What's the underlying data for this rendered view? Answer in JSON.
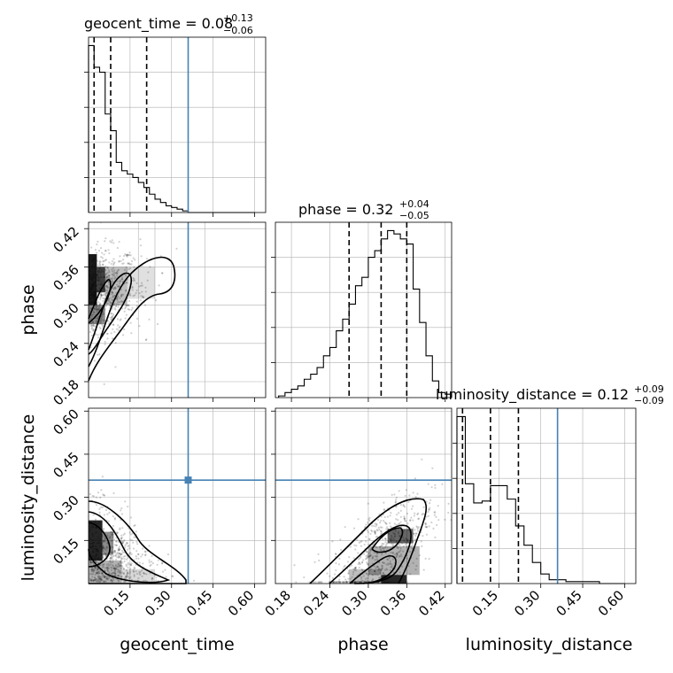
{
  "figure": {
    "type": "corner_plot",
    "truth_color": "#4682b4",
    "hist_color": "#000000",
    "params": [
      "geocent_time",
      "phase",
      "luminosity_distance"
    ]
  },
  "chart_data": [
    {
      "type": "histogram",
      "param": "geocent_time",
      "title_main": "geocent_time = 0.08",
      "title_plus": "+0.13",
      "title_minus": "−0.06",
      "xlim": [
        0.0,
        0.64
      ],
      "bin_edges": [
        0.0,
        0.02,
        0.04,
        0.06,
        0.08,
        0.1,
        0.12,
        0.14,
        0.16,
        0.18,
        0.2,
        0.22,
        0.24,
        0.26,
        0.28,
        0.3,
        0.32,
        0.34,
        0.36,
        0.38,
        0.4,
        0.42,
        0.44,
        0.46,
        0.48,
        0.5,
        0.52,
        0.54,
        0.56,
        0.58,
        0.6
      ],
      "counts": [
        1.0,
        0.87,
        0.84,
        0.59,
        0.49,
        0.3,
        0.25,
        0.23,
        0.21,
        0.18,
        0.15,
        0.11,
        0.08,
        0.06,
        0.04,
        0.03,
        0.02,
        0.01,
        0.0,
        0.0,
        0.0,
        0.0,
        0.0,
        0.0,
        0.0,
        0.0,
        0.0,
        0.0,
        0.0,
        0.0
      ],
      "quantiles": [
        0.02,
        0.08,
        0.21
      ],
      "truth": 0.36,
      "xticks": []
    },
    {
      "type": "histogram",
      "param": "phase",
      "title_main": "phase = 0.32",
      "title_plus": "+0.04",
      "title_minus": "−0.05",
      "xlim": [
        0.155,
        0.43
      ],
      "bin_edges": [
        0.16,
        0.17,
        0.18,
        0.19,
        0.2,
        0.21,
        0.22,
        0.23,
        0.24,
        0.25,
        0.26,
        0.27,
        0.28,
        0.29,
        0.3,
        0.31,
        0.32,
        0.33,
        0.34,
        0.35,
        0.36,
        0.37,
        0.38,
        0.39,
        0.4,
        0.41,
        0.42,
        0.43
      ],
      "counts": [
        0.01,
        0.03,
        0.05,
        0.07,
        0.11,
        0.14,
        0.18,
        0.25,
        0.3,
        0.4,
        0.47,
        0.56,
        0.67,
        0.72,
        0.84,
        0.88,
        0.95,
        1.0,
        0.98,
        0.95,
        0.92,
        0.65,
        0.45,
        0.25,
        0.1,
        0.03,
        0.02
      ],
      "quantiles": [
        0.27,
        0.32,
        0.36
      ],
      "truth": null,
      "xticks": []
    },
    {
      "type": "histogram",
      "param": "luminosity_distance",
      "title_main": "luminosity_distance = 0.12",
      "title_plus": "+0.09",
      "title_minus": "−0.09",
      "xlim": [
        0.0,
        0.64
      ],
      "bin_edges": [
        0.0,
        0.03,
        0.06,
        0.09,
        0.12,
        0.15,
        0.18,
        0.21,
        0.24,
        0.27,
        0.3,
        0.33,
        0.36,
        0.39,
        0.42,
        0.45,
        0.48,
        0.51,
        0.54,
        0.57,
        0.6
      ],
      "counts": [
        0.87,
        0.52,
        0.42,
        0.43,
        0.51,
        0.51,
        0.44,
        0.3,
        0.2,
        0.11,
        0.05,
        0.02,
        0.02,
        0.01,
        0.01,
        0.01,
        0.01,
        0.0,
        0.0,
        0.0
      ],
      "quantiles": [
        0.02,
        0.12,
        0.22
      ],
      "truth": 0.36,
      "xticks": [
        "0.15",
        "0.30",
        "0.45",
        "0.60"
      ],
      "xtick_values": [
        0.15,
        0.3,
        0.45,
        0.6
      ]
    },
    {
      "type": "scatter_density",
      "xparam": "geocent_time",
      "yparam": "phase",
      "xlim": [
        0.0,
        0.64
      ],
      "ylim": [
        0.155,
        0.43
      ],
      "truth_x": 0.36,
      "truth_y": null,
      "yticks": [
        "0.18",
        "0.24",
        "0.30",
        "0.36",
        "0.42"
      ],
      "ytick_values": [
        0.18,
        0.24,
        0.3,
        0.36,
        0.42
      ],
      "xticks": []
    },
    {
      "type": "scatter_density",
      "xparam": "geocent_time",
      "yparam": "luminosity_distance",
      "xlim": [
        0.0,
        0.64
      ],
      "ylim": [
        0.0,
        0.61
      ],
      "truth_x": 0.36,
      "truth_y": 0.36,
      "xticks": [
        "0.15",
        "0.30",
        "0.45",
        "0.60"
      ],
      "xtick_values": [
        0.15,
        0.3,
        0.45,
        0.6
      ],
      "yticks": [
        "0.15",
        "0.30",
        "0.45",
        "0.60"
      ],
      "ytick_values": [
        0.15,
        0.3,
        0.45,
        0.6
      ]
    },
    {
      "type": "scatter_density",
      "xparam": "phase",
      "yparam": "luminosity_distance",
      "xlim": [
        0.155,
        0.43
      ],
      "ylim": [
        0.0,
        0.61
      ],
      "truth_x": null,
      "truth_y": 0.36,
      "xticks": [
        "0.18",
        "0.24",
        "0.30",
        "0.36",
        "0.42"
      ],
      "xtick_values": [
        0.18,
        0.24,
        0.3,
        0.36,
        0.42
      ],
      "yticks": []
    }
  ],
  "axis_labels": {
    "x_col1": "geocent_time",
    "x_col2": "phase",
    "x_col3": "luminosity_distance",
    "y_row2": "phase",
    "y_row3": "luminosity_distance"
  }
}
